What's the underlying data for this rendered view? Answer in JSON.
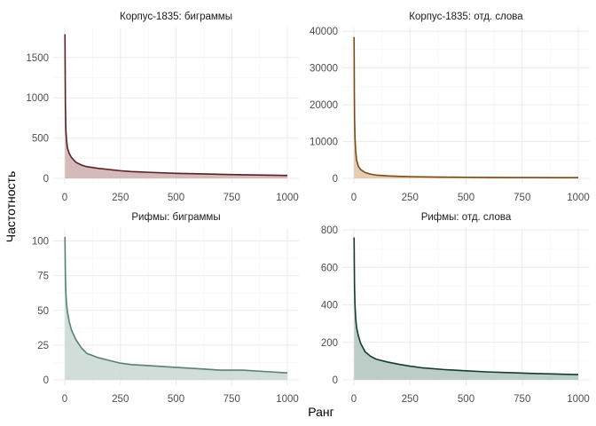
{
  "chart_data": {
    "type": "area",
    "xlabel": "Ранг",
    "ylabel": "Частотность",
    "grid": true,
    "x_ticks": [
      0,
      250,
      500,
      750,
      1000
    ],
    "panels": [
      {
        "title": "Корпус-1835: биграммы",
        "line_color": "#5a1f24",
        "fill_color": "#cfb3b3",
        "ylim": [
          0,
          1850
        ],
        "y_ticks": [
          0,
          500,
          1000,
          1500
        ],
        "points": [
          [
            1,
            1790
          ],
          [
            2,
            1320
          ],
          [
            3,
            900
          ],
          [
            5,
            600
          ],
          [
            8,
            480
          ],
          [
            12,
            380
          ],
          [
            20,
            310
          ],
          [
            30,
            260
          ],
          [
            50,
            200
          ],
          [
            75,
            165
          ],
          [
            100,
            145
          ],
          [
            150,
            125
          ],
          [
            200,
            110
          ],
          [
            250,
            95
          ],
          [
            300,
            85
          ],
          [
            400,
            73
          ],
          [
            500,
            63
          ],
          [
            600,
            57
          ],
          [
            700,
            50
          ],
          [
            800,
            45
          ],
          [
            900,
            41
          ],
          [
            1000,
            37
          ]
        ]
      },
      {
        "title": "Корпус-1835: отд. слова",
        "line_color": "#7a4a12",
        "fill_color": "#e3c5ad",
        "ylim": [
          0,
          40500
        ],
        "y_ticks": [
          0,
          10000,
          20000,
          30000,
          40000
        ],
        "points": [
          [
            1,
            38400
          ],
          [
            2,
            24000
          ],
          [
            3,
            16500
          ],
          [
            5,
            11000
          ],
          [
            8,
            7500
          ],
          [
            12,
            5000
          ],
          [
            20,
            3300
          ],
          [
            30,
            2400
          ],
          [
            50,
            1600
          ],
          [
            75,
            1150
          ],
          [
            100,
            900
          ],
          [
            150,
            680
          ],
          [
            200,
            560
          ],
          [
            250,
            480
          ],
          [
            300,
            420
          ],
          [
            400,
            350
          ],
          [
            500,
            300
          ],
          [
            600,
            260
          ],
          [
            700,
            235
          ],
          [
            800,
            215
          ],
          [
            900,
            198
          ],
          [
            1000,
            185
          ]
        ]
      },
      {
        "title": "Рифмы: биграммы",
        "line_color": "#5a8073",
        "fill_color": "#cbd9d4",
        "ylim": [
          0,
          108
        ],
        "y_ticks": [
          0,
          25,
          50,
          75,
          100
        ],
        "points": [
          [
            1,
            103
          ],
          [
            2,
            88
          ],
          [
            3,
            75
          ],
          [
            5,
            63
          ],
          [
            8,
            55
          ],
          [
            12,
            49
          ],
          [
            20,
            42
          ],
          [
            30,
            36
          ],
          [
            50,
            29
          ],
          [
            75,
            23
          ],
          [
            100,
            19
          ],
          [
            150,
            16
          ],
          [
            200,
            14
          ],
          [
            250,
            12
          ],
          [
            300,
            11
          ],
          [
            400,
            10
          ],
          [
            500,
            9
          ],
          [
            600,
            8
          ],
          [
            700,
            7
          ],
          [
            800,
            7
          ],
          [
            900,
            6
          ],
          [
            1000,
            5
          ]
        ]
      },
      {
        "title": "Рифмы: отд. слова",
        "line_color": "#123c32",
        "fill_color": "#b5c8c2",
        "ylim": [
          0,
          800
        ],
        "y_ticks": [
          0,
          200,
          400,
          600,
          800
        ],
        "points": [
          [
            1,
            760
          ],
          [
            2,
            600
          ],
          [
            3,
            490
          ],
          [
            5,
            400
          ],
          [
            8,
            330
          ],
          [
            12,
            280
          ],
          [
            20,
            235
          ],
          [
            30,
            195
          ],
          [
            50,
            150
          ],
          [
            75,
            125
          ],
          [
            100,
            110
          ],
          [
            150,
            95
          ],
          [
            200,
            83
          ],
          [
            250,
            73
          ],
          [
            300,
            65
          ],
          [
            400,
            55
          ],
          [
            500,
            48
          ],
          [
            600,
            42
          ],
          [
            700,
            38
          ],
          [
            800,
            34
          ],
          [
            900,
            31
          ],
          [
            1000,
            28
          ]
        ]
      }
    ]
  }
}
